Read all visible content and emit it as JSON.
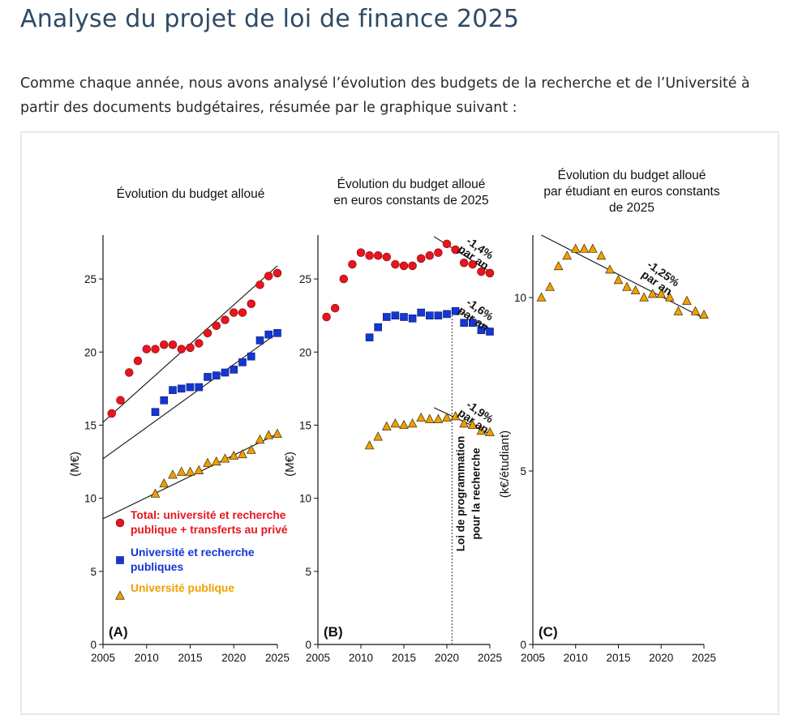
{
  "page": {
    "title": "Analyse du projet de loi de finance 2025",
    "intro": "Comme chaque année, nous avons analysé l’évolution des budgets de la recherche et de l’Université à partir des documents budgétaires, résumée par le graphique suivant :"
  },
  "chart_data": [
    {
      "panel": "A",
      "type": "scatter",
      "title": [
        "Évolution du budget alloué"
      ],
      "ylabel": "(M€)",
      "xlim": [
        2005,
        2025
      ],
      "ylim": [
        0,
        28
      ],
      "xticks": [
        2005,
        2010,
        2015,
        2020,
        2025
      ],
      "yticks": [
        0,
        5,
        10,
        15,
        20,
        25
      ],
      "panel_label": "(A)",
      "legend": [
        {
          "marker": "circle",
          "color": "#e8141e",
          "lines": [
            "Total: université et recherche",
            "publique + transferts au privé"
          ]
        },
        {
          "marker": "square",
          "color": "#1436d4",
          "lines": [
            "Université et recherche",
            "publiques"
          ]
        },
        {
          "marker": "triangle",
          "color": "#f0a000",
          "lines": [
            "Université publique"
          ]
        }
      ],
      "series": [
        {
          "name": "Total: université et recherche publique + transferts au privé",
          "marker": "circle",
          "color": "#e8141e",
          "x": [
            2006,
            2007,
            2008,
            2009,
            2010,
            2011,
            2012,
            2013,
            2014,
            2015,
            2016,
            2017,
            2018,
            2019,
            2020,
            2021,
            2022,
            2023,
            2024,
            2025
          ],
          "y": [
            15.8,
            16.7,
            18.6,
            19.4,
            20.2,
            20.2,
            20.5,
            20.5,
            20.2,
            20.3,
            20.6,
            21.3,
            21.8,
            22.2,
            22.7,
            22.7,
            23.3,
            24.6,
            25.2,
            25.4
          ]
        },
        {
          "name": "Université et recherche publiques",
          "marker": "square",
          "color": "#1436d4",
          "x": [
            2011,
            2012,
            2013,
            2014,
            2015,
            2016,
            2017,
            2018,
            2019,
            2020,
            2021,
            2022,
            2023,
            2024,
            2025
          ],
          "y": [
            15.9,
            16.7,
            17.4,
            17.5,
            17.6,
            17.6,
            18.3,
            18.4,
            18.6,
            18.8,
            19.3,
            19.7,
            20.8,
            21.2,
            21.3
          ]
        },
        {
          "name": "Université publique",
          "marker": "triangle",
          "color": "#f0a000",
          "x": [
            2011,
            2012,
            2013,
            2014,
            2015,
            2016,
            2017,
            2018,
            2019,
            2020,
            2021,
            2022,
            2023,
            2024,
            2025
          ],
          "y": [
            10.3,
            11.0,
            11.6,
            11.8,
            11.8,
            11.9,
            12.4,
            12.5,
            12.7,
            12.9,
            13.0,
            13.3,
            14.0,
            14.3,
            14.4
          ]
        }
      ],
      "trend_lines": [
        {
          "x": [
            2005,
            2025
          ],
          "y": [
            15.2,
            25.9
          ]
        },
        {
          "x": [
            2005,
            2025
          ],
          "y": [
            12.7,
            21.3
          ]
        },
        {
          "x": [
            2005,
            2025
          ],
          "y": [
            8.6,
            14.4
          ]
        }
      ]
    },
    {
      "panel": "B",
      "type": "scatter",
      "title": [
        "Évolution du budget alloué",
        "en euros constants de 2025"
      ],
      "ylabel": "(M€)",
      "xlim": [
        2005,
        2025
      ],
      "ylim": [
        0,
        28
      ],
      "xticks": [
        2005,
        2010,
        2015,
        2020,
        2025
      ],
      "yticks": [
        0,
        5,
        10,
        15,
        20,
        25
      ],
      "panel_label": "(B)",
      "vline": {
        "x": 2020.6,
        "label": [
          "Loi de programmation",
          "pour la recherche"
        ]
      },
      "series": [
        {
          "name": "Total: université et recherche publique + transferts au privé",
          "marker": "circle",
          "color": "#e8141e",
          "x": [
            2006,
            2007,
            2008,
            2009,
            2010,
            2011,
            2012,
            2013,
            2014,
            2015,
            2016,
            2017,
            2018,
            2019,
            2020,
            2021,
            2022,
            2023,
            2024,
            2025
          ],
          "y": [
            22.4,
            23.0,
            25.0,
            26.0,
            26.8,
            26.6,
            26.6,
            26.5,
            26.0,
            25.9,
            25.9,
            26.4,
            26.6,
            26.8,
            27.4,
            27.0,
            26.1,
            26.0,
            25.5,
            25.4
          ]
        },
        {
          "name": "Université et recherche publiques",
          "marker": "square",
          "color": "#1436d4",
          "x": [
            2011,
            2012,
            2013,
            2014,
            2015,
            2016,
            2017,
            2018,
            2019,
            2020,
            2021,
            2022,
            2023,
            2024,
            2025
          ],
          "y": [
            21.0,
            21.7,
            22.4,
            22.5,
            22.4,
            22.3,
            22.7,
            22.5,
            22.5,
            22.6,
            22.8,
            22.0,
            22.0,
            21.5,
            21.4
          ]
        },
        {
          "name": "Université publique",
          "marker": "triangle",
          "color": "#f0a000",
          "x": [
            2011,
            2012,
            2013,
            2014,
            2015,
            2016,
            2017,
            2018,
            2019,
            2020,
            2021,
            2022,
            2023,
            2024,
            2025
          ],
          "y": [
            13.6,
            14.2,
            14.9,
            15.1,
            15.0,
            15.1,
            15.5,
            15.4,
            15.4,
            15.5,
            15.6,
            15.1,
            15.0,
            14.6,
            14.5
          ]
        }
      ],
      "trend_lines": [
        {
          "x": [
            2018.5,
            2025
          ],
          "y": [
            27.9,
            25.5
          ]
        },
        {
          "x": [
            2021,
            2025
          ],
          "y": [
            23.0,
            21.6
          ]
        },
        {
          "x": [
            2018.5,
            2025
          ],
          "y": [
            16.2,
            14.4
          ]
        }
      ],
      "annotations": [
        {
          "lines": [
            "-1,4%",
            "par an"
          ],
          "x": 2023.6,
          "y": 26.9
        },
        {
          "lines": [
            "-1,6%",
            "par an"
          ],
          "x": 2023.6,
          "y": 22.7
        },
        {
          "lines": [
            "-1,9%",
            "par an"
          ],
          "x": 2023.6,
          "y": 15.7
        }
      ]
    },
    {
      "panel": "C",
      "type": "scatter",
      "title": [
        "Évolution du budget alloué",
        "par étudiant en euros constants",
        "de 2025"
      ],
      "ylabel": "(k€/étudiant)",
      "xlim": [
        2005,
        2025
      ],
      "ylim": [
        0,
        11.8
      ],
      "xticks": [
        2005,
        2010,
        2015,
        2020,
        2025
      ],
      "yticks": [
        0,
        5,
        10
      ],
      "panel_label": "(C)",
      "series": [
        {
          "name": "Université publique",
          "marker": "triangle",
          "color": "#f0a000",
          "x": [
            2006,
            2007,
            2008,
            2009,
            2010,
            2011,
            2012,
            2013,
            2014,
            2015,
            2016,
            2017,
            2018,
            2019,
            2020,
            2021,
            2022,
            2023,
            2024,
            2025
          ],
          "y": [
            10.0,
            10.3,
            10.9,
            11.2,
            11.4,
            11.4,
            11.4,
            11.2,
            10.8,
            10.5,
            10.3,
            10.2,
            10.0,
            10.1,
            10.1,
            10.0,
            9.6,
            9.9,
            9.6,
            9.5
          ]
        }
      ],
      "trend_lines": [
        {
          "x": [
            2006,
            2025
          ],
          "y": [
            11.8,
            9.4
          ]
        }
      ],
      "annotations": [
        {
          "lines": [
            "-1,25%",
            "par an"
          ],
          "x": 2020.0,
          "y": 10.6
        }
      ]
    }
  ]
}
